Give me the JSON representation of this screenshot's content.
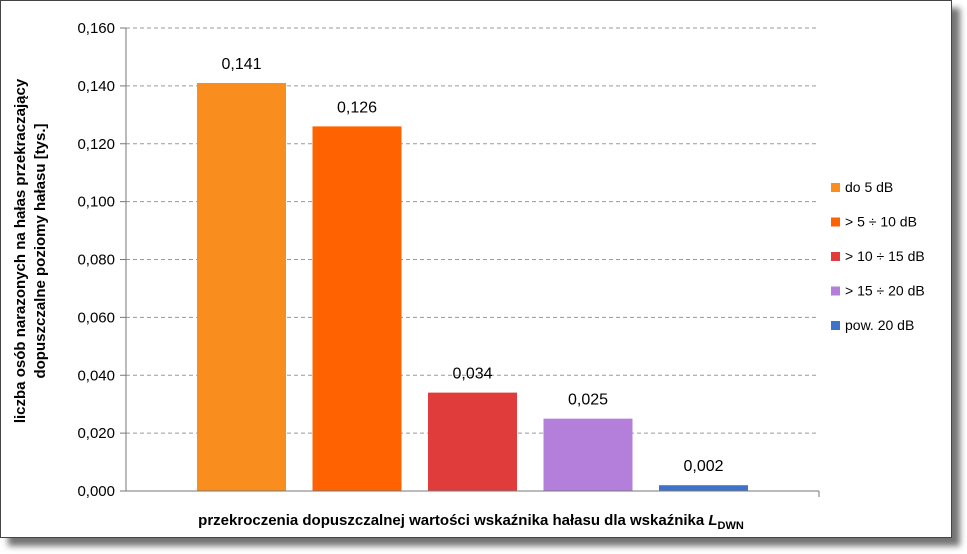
{
  "chart_data": {
    "type": "bar",
    "categories": [
      "do 5 dB",
      "> 5 ÷ 10 dB",
      "> 10 ÷ 15 dB",
      "> 15 ÷ 20 dB",
      "pow.  20 dB"
    ],
    "values": [
      0.141,
      0.126,
      0.034,
      0.025,
      0.002
    ],
    "data_labels": [
      "0,141",
      "0,126",
      "0,034",
      "0,025",
      "0,002"
    ],
    "colors": [
      "#F98D1E",
      "#FF6200",
      "#E03C3C",
      "#B47FDB",
      "#3F73C9"
    ],
    "ylim": [
      0,
      0.16
    ],
    "yticks": [
      "0,000",
      "0,020",
      "0,040",
      "0,060",
      "0,080",
      "0,100",
      "0,120",
      "0,140",
      "0,160"
    ],
    "ylabel_line1": "liczba osób narazonych na hałas przekraczający",
    "ylabel_line2": "dopuszczalne poziomy hałasu [tys.]",
    "xlabel_main": "przekroczenia dopuszczalnej wartości wskaźnika hałasu dla wskaźnika ",
    "xlabel_L": "L",
    "xlabel_sub": "DWN",
    "grid": true,
    "legend_position": "right"
  }
}
